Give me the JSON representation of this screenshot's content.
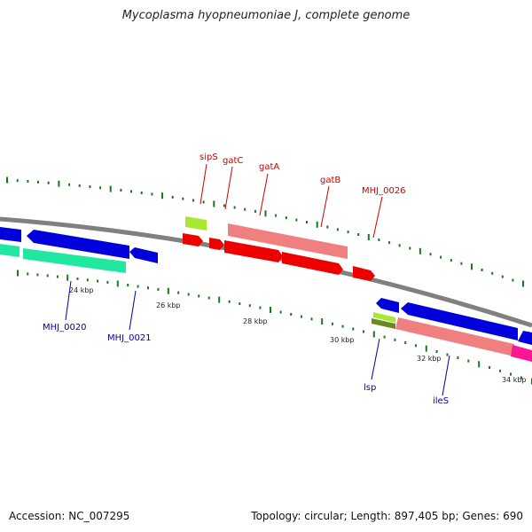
{
  "title": "Mycoplasma hyopneumoniae J, complete genome",
  "footer": {
    "accession": "Accession: NC_007295",
    "summary": "Topology: circular; Length: 897,405 bp; Genes: 690"
  },
  "colors": {
    "backbone": "#808080",
    "tick": "#1a7a1a",
    "label_forward": "#cc0000",
    "label_reverse": "#0000aa",
    "ruler_text": "#222222",
    "cds_blue": "#0000dd",
    "cds_red": "#ee0000",
    "gene_salmon": "#f08080",
    "gene_teal": "#20e8a0",
    "gene_lime": "#a8e830",
    "gene_olive": "#6a8a20",
    "gene_magenta": "#ff1493"
  },
  "ruler": [
    "24 kbp",
    "26 kbp",
    "28 kbp",
    "30 kbp",
    "32 kbp",
    "34 kbp"
  ],
  "gene_labels": {
    "forward": [
      "sipS",
      "gatC",
      "gatA",
      "gatB",
      "MHJ_0026"
    ],
    "reverse": [
      "MHJ_0020",
      "MHJ_0021",
      "lsp",
      "ileS"
    ]
  }
}
